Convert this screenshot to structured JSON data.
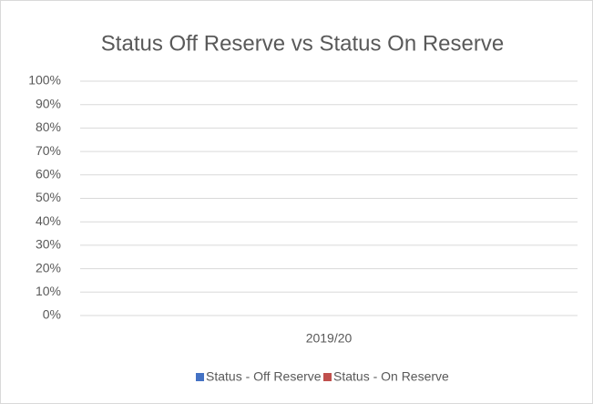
{
  "chart_data": {
    "type": "bar",
    "stacked": true,
    "title": "Status Off Reserve vs Status On Reserve",
    "categories": [
      "2019/20"
    ],
    "series": [
      {
        "name": "Status - Off Reserve",
        "color": "#4472c4",
        "values": [
          0
        ]
      },
      {
        "name": "Status - On Reserve",
        "color": "#c0504d",
        "values": [
          0
        ]
      }
    ],
    "ylim": [
      0,
      100
    ],
    "yticks": [
      {
        "value": 0,
        "label": "0%"
      },
      {
        "value": 10,
        "label": "10%"
      },
      {
        "value": 20,
        "label": "20%"
      },
      {
        "value": 30,
        "label": "30%"
      },
      {
        "value": 40,
        "label": "40%"
      },
      {
        "value": 50,
        "label": "50%"
      },
      {
        "value": 60,
        "label": "60%"
      },
      {
        "value": 70,
        "label": "70%"
      },
      {
        "value": 80,
        "label": "80%"
      },
      {
        "value": 90,
        "label": "90%"
      },
      {
        "value": 100,
        "label": "100%"
      }
    ],
    "grid": true,
    "legend": "bottom"
  }
}
